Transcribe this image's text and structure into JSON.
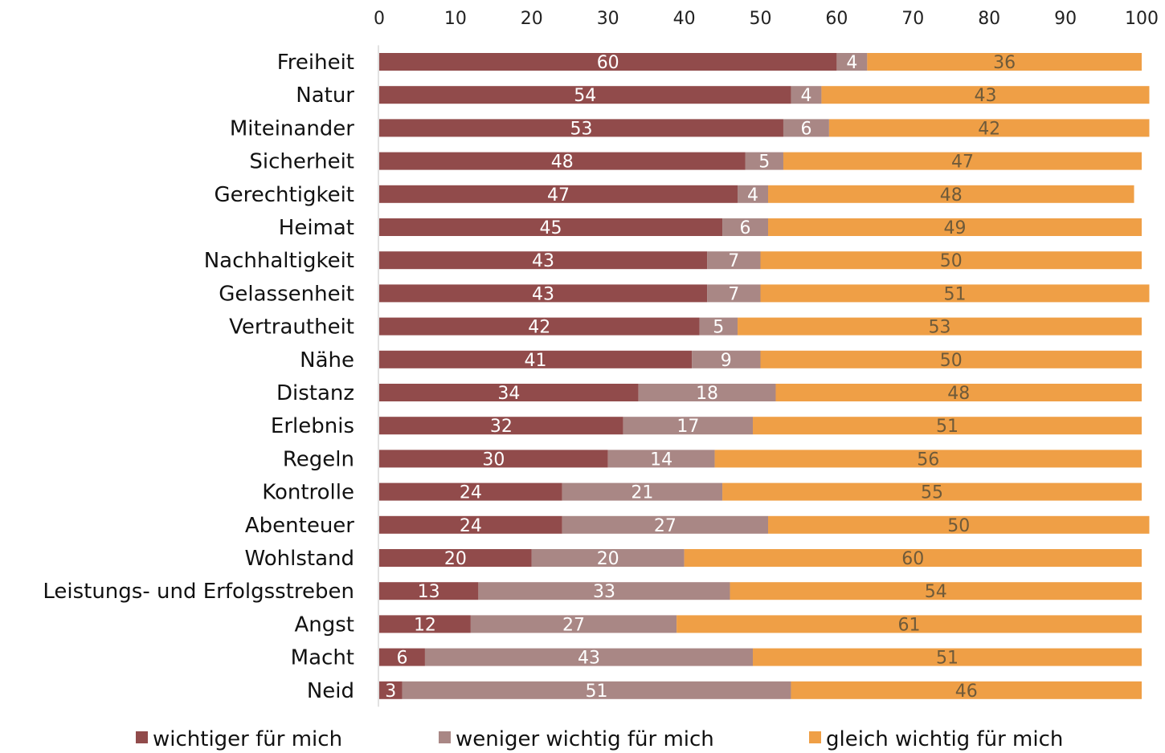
{
  "chart_data": {
    "type": "bar",
    "orientation": "horizontal",
    "stacked": true,
    "xlim": [
      0,
      100
    ],
    "x_ticks": [
      "0",
      "10",
      "20",
      "30",
      "40",
      "50",
      "60",
      "70",
      "80",
      "90",
      "100"
    ],
    "x_axis_position": "top",
    "grid": false,
    "legend_position": "bottom",
    "categories": [
      "Freiheit",
      "Natur",
      "Miteinander",
      "Sicherheit",
      "Gerechtigkeit",
      "Heimat",
      "Nachhaltigkeit",
      "Gelassenheit",
      "Vertrautheit",
      "Nähe",
      "Distanz",
      "Erlebnis",
      "Regeln",
      "Kontrolle",
      "Abenteuer",
      "Wohlstand",
      "Leistungs- und Erfolgsstreben",
      "Angst",
      "Macht",
      "Neid"
    ],
    "series": [
      {
        "name": "wichtiger für mich",
        "color": "#914b4b",
        "label_color": "#ffffff",
        "values": [
          60,
          54,
          53,
          48,
          47,
          45,
          43,
          43,
          42,
          41,
          34,
          32,
          30,
          24,
          24,
          20,
          13,
          12,
          6,
          3
        ]
      },
      {
        "name": "weniger wichtig für mich",
        "color": "#a98785",
        "label_color": "#ffffff",
        "values": [
          4,
          4,
          6,
          5,
          4,
          6,
          7,
          7,
          5,
          9,
          18,
          17,
          14,
          21,
          27,
          20,
          33,
          27,
          43,
          51
        ]
      },
      {
        "name": "gleich wichtig für mich",
        "color": "#ef9f46",
        "label_color": "#6e5a3a",
        "values": [
          36,
          43,
          42,
          47,
          48,
          49,
          50,
          51,
          53,
          50,
          48,
          51,
          56,
          55,
          50,
          60,
          54,
          61,
          51,
          46
        ]
      }
    ]
  }
}
